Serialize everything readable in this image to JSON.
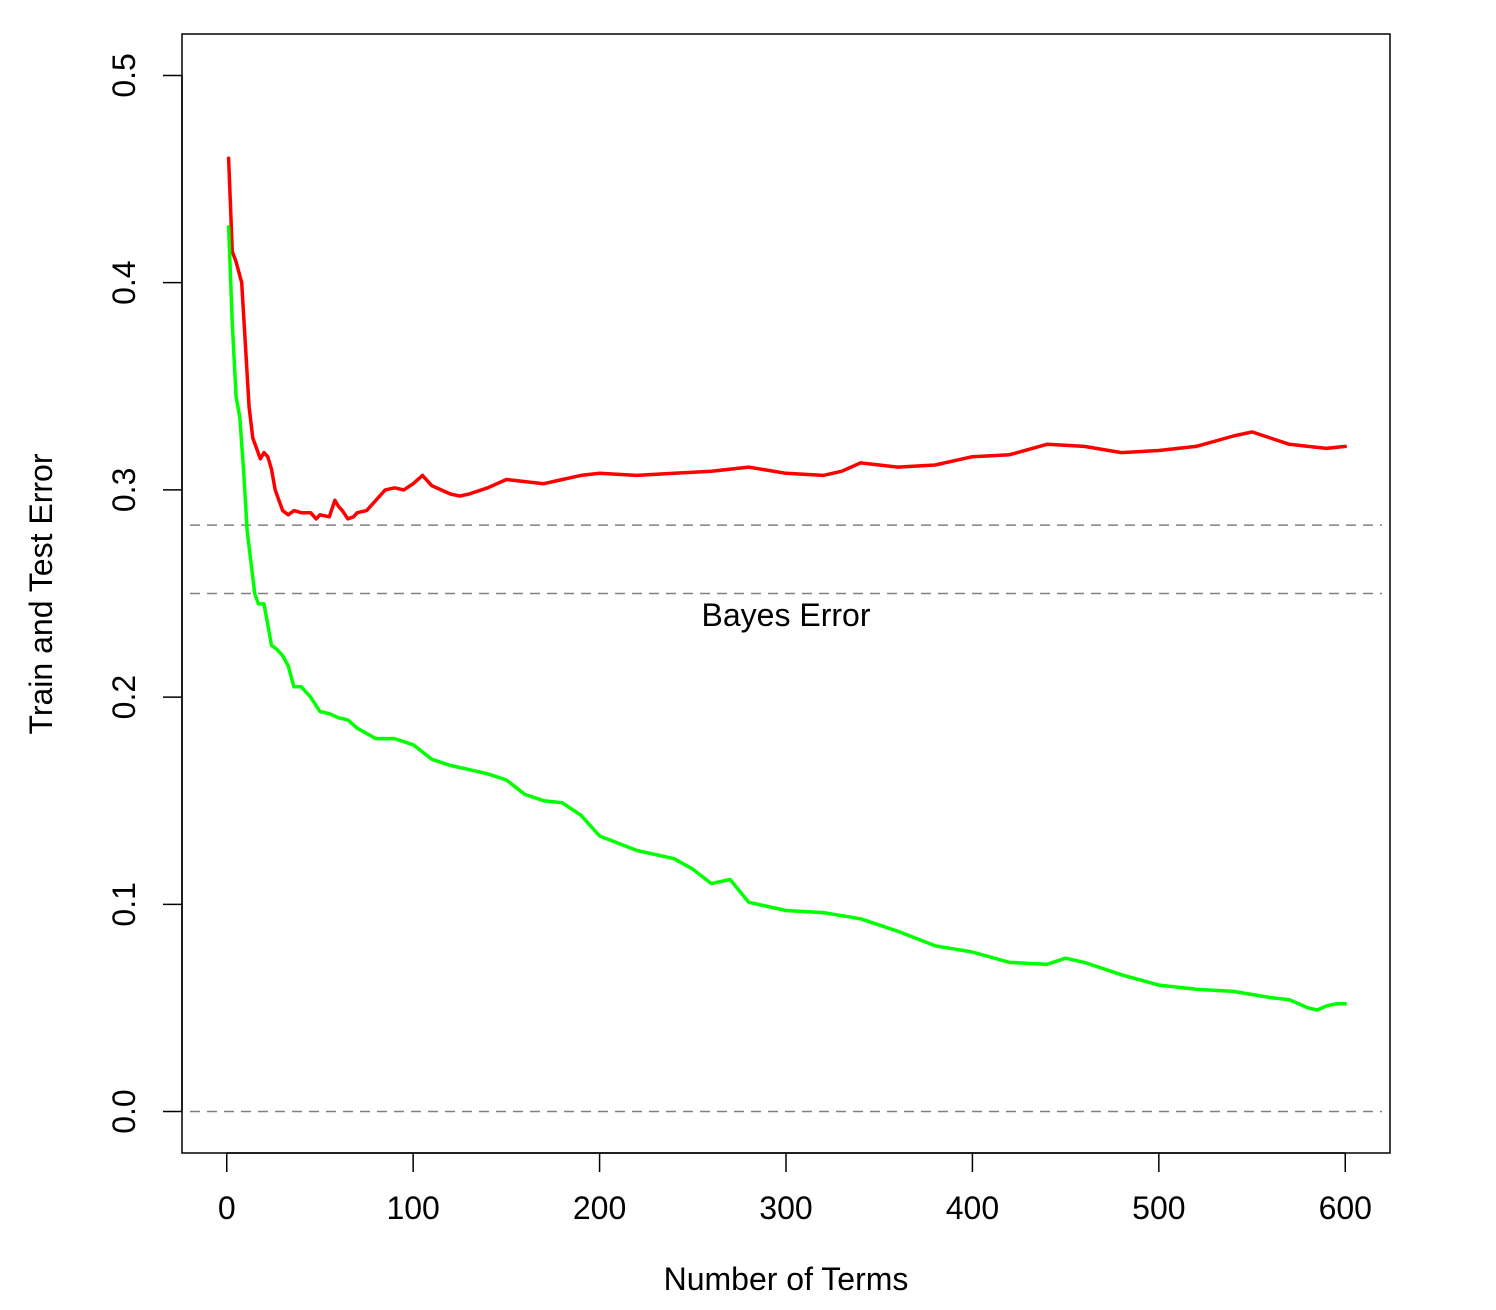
{
  "chart_data": {
    "type": "line",
    "title": "",
    "xlabel": "Number of Terms",
    "ylabel": "Train and Test Error",
    "xlim": [
      -24,
      624
    ],
    "ylim": [
      -0.02,
      0.52
    ],
    "x_ticks": [
      0,
      100,
      200,
      300,
      400,
      500,
      600
    ],
    "x_tick_labels": [
      "0",
      "100",
      "200",
      "300",
      "400",
      "500",
      "600"
    ],
    "y_ticks": [
      0.0,
      0.1,
      0.2,
      0.3,
      0.4,
      0.5
    ],
    "y_tick_labels": [
      "0.0",
      "0.1",
      "0.2",
      "0.3",
      "0.4",
      "0.5"
    ],
    "grid": false,
    "legend": "none",
    "reference_lines": [
      {
        "y": 0.283,
        "style": "dashed",
        "color": "#808080"
      },
      {
        "y": 0.25,
        "style": "dashed",
        "color": "#808080"
      },
      {
        "y": 0.0,
        "style": "dashed",
        "color": "#808080"
      }
    ],
    "annotations": [
      {
        "text": "Bayes Error",
        "x": 300,
        "y": 0.24
      }
    ],
    "series": [
      {
        "color": "#ff0000",
        "x": [
          1,
          3,
          5,
          8,
          10,
          12,
          14,
          16,
          18,
          20,
          22,
          24,
          26,
          28,
          30,
          33,
          36,
          40,
          45,
          48,
          50,
          55,
          58,
          60,
          62,
          65,
          68,
          70,
          75,
          80,
          85,
          90,
          95,
          100,
          105,
          110,
          115,
          120,
          125,
          130,
          140,
          150,
          160,
          170,
          180,
          190,
          200,
          220,
          240,
          260,
          280,
          300,
          320,
          330,
          340,
          350,
          360,
          380,
          400,
          420,
          440,
          460,
          480,
          500,
          520,
          540,
          550,
          560,
          570,
          580,
          590,
          600
        ],
        "y": [
          0.46,
          0.415,
          0.41,
          0.4,
          0.37,
          0.34,
          0.325,
          0.32,
          0.315,
          0.318,
          0.316,
          0.31,
          0.3,
          0.295,
          0.29,
          0.288,
          0.29,
          0.289,
          0.289,
          0.286,
          0.288,
          0.287,
          0.295,
          0.292,
          0.29,
          0.286,
          0.287,
          0.289,
          0.29,
          0.295,
          0.3,
          0.301,
          0.3,
          0.303,
          0.307,
          0.302,
          0.3,
          0.298,
          0.297,
          0.298,
          0.301,
          0.305,
          0.304,
          0.303,
          0.305,
          0.307,
          0.308,
          0.307,
          0.308,
          0.309,
          0.311,
          0.308,
          0.307,
          0.309,
          0.313,
          0.312,
          0.311,
          0.312,
          0.316,
          0.317,
          0.322,
          0.321,
          0.318,
          0.319,
          0.321,
          0.326,
          0.328,
          0.325,
          0.322,
          0.321,
          0.32,
          0.321
        ]
      },
      {
        "color": "#00ff00",
        "x": [
          1,
          3,
          5,
          7,
          9,
          11,
          13,
          15,
          17,
          20,
          22,
          24,
          27,
          30,
          33,
          36,
          40,
          45,
          50,
          55,
          60,
          65,
          70,
          80,
          90,
          100,
          110,
          120,
          130,
          140,
          150,
          160,
          170,
          180,
          190,
          200,
          220,
          240,
          250,
          260,
          270,
          280,
          300,
          320,
          340,
          360,
          380,
          400,
          420,
          440,
          450,
          460,
          480,
          500,
          520,
          540,
          560,
          570,
          580,
          585,
          590,
          595,
          600
        ],
        "y": [
          0.427,
          0.38,
          0.345,
          0.335,
          0.31,
          0.28,
          0.265,
          0.25,
          0.245,
          0.245,
          0.235,
          0.225,
          0.223,
          0.22,
          0.215,
          0.205,
          0.205,
          0.2,
          0.193,
          0.192,
          0.19,
          0.189,
          0.185,
          0.18,
          0.18,
          0.177,
          0.17,
          0.167,
          0.165,
          0.163,
          0.16,
          0.153,
          0.15,
          0.149,
          0.143,
          0.133,
          0.126,
          0.122,
          0.117,
          0.11,
          0.112,
          0.101,
          0.097,
          0.096,
          0.093,
          0.087,
          0.08,
          0.077,
          0.072,
          0.071,
          0.074,
          0.072,
          0.066,
          0.061,
          0.059,
          0.058,
          0.055,
          0.054,
          0.05,
          0.049,
          0.051,
          0.052,
          0.052
        ]
      }
    ]
  }
}
